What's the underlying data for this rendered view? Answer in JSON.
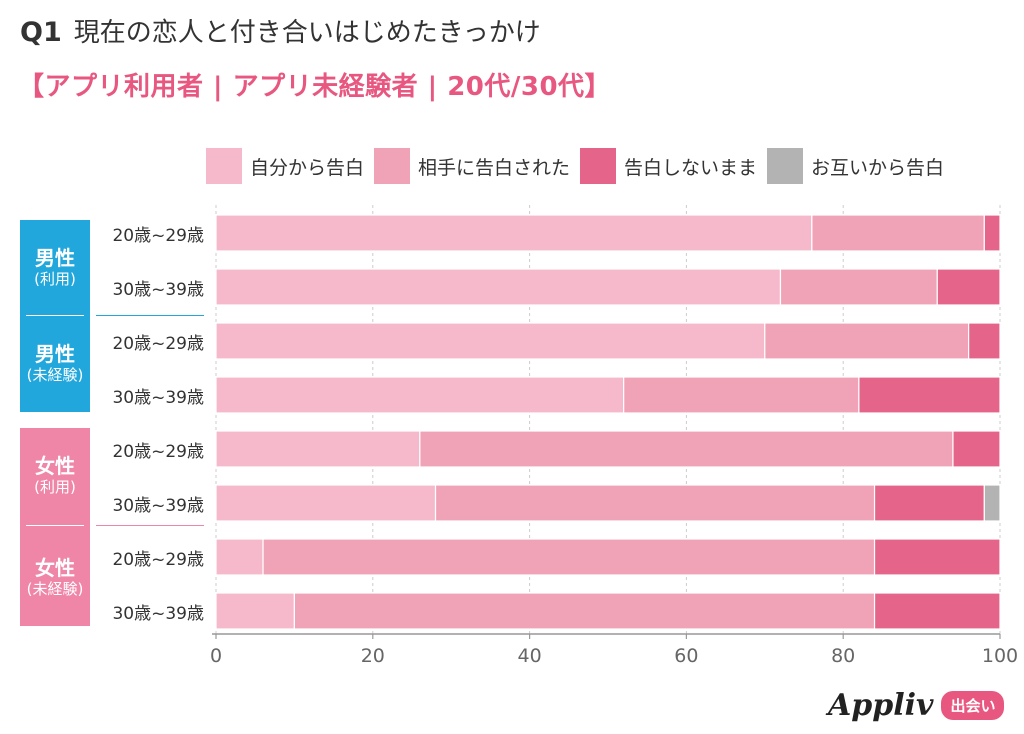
{
  "title": {
    "qnum": "Q1",
    "text": "現在の恋人と付き合いはじめたきっかけ"
  },
  "subtitle": "【アプリ利用者 | アプリ未経験者 | 20代/30代】",
  "groups": [
    {
      "main": "男性",
      "sub": "(利用)",
      "color": "#22a7dc"
    },
    {
      "main": "男性",
      "sub": "(未経験)",
      "color": "#22a7dc"
    },
    {
      "main": "女性",
      "sub": "(利用)",
      "color": "#ef86a8"
    },
    {
      "main": "女性",
      "sub": "(未経験)",
      "color": "#ef86a8"
    }
  ],
  "colors": {
    "self": "#f5b9cb",
    "partner": "#f0a2b7",
    "none": "#e5648a",
    "mutual": "#b3b3b3",
    "male_rule": "#22a7dc",
    "female_rule": "#ef86a8"
  },
  "chart_data": {
    "type": "bar",
    "orientation": "horizontal",
    "stacked": true,
    "categories": [
      "20歳~29歳",
      "30歳~39歳",
      "20歳~29歳",
      "30歳~39歳",
      "20歳~29歳",
      "30歳~39歳",
      "20歳~29歳",
      "30歳~39歳"
    ],
    "series": [
      {
        "name": "自分から告白",
        "color_key": "self",
        "values": [
          76,
          72,
          70,
          52,
          26,
          28,
          6,
          10
        ]
      },
      {
        "name": "相手に告白された",
        "color_key": "partner",
        "values": [
          22,
          20,
          26,
          30,
          68,
          56,
          78,
          74
        ]
      },
      {
        "name": "告白しないまま",
        "color_key": "none",
        "values": [
          2,
          8,
          4,
          18,
          6,
          14,
          16,
          16
        ]
      },
      {
        "name": "お互いから告白",
        "color_key": "mutual",
        "values": [
          0,
          0,
          0,
          0,
          0,
          2,
          0,
          0
        ]
      }
    ],
    "xlim": [
      0,
      100
    ],
    "xticks": [
      0,
      20,
      40,
      60,
      80,
      100
    ],
    "grid": true,
    "legend_position": "top-right"
  },
  "logo": {
    "name": "Appliv",
    "badge": "出会い"
  }
}
